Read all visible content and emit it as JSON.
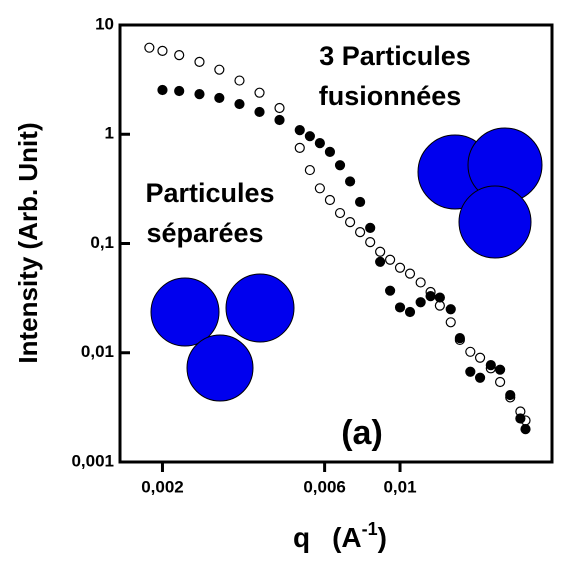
{
  "chart_data": {
    "type": "scatter",
    "y_label": "Intensity (Arb. Unit)",
    "x_label": [
      "q",
      "(A",
      "-1",
      ")"
    ],
    "annotations": [
      "3 Particules",
      "fusionnées",
      "Particules",
      "séparées",
      "(a)"
    ],
    "log_x": true,
    "log_y": true,
    "xlim": [
      0.0015,
      0.028
    ],
    "ylim": [
      0.001,
      10
    ],
    "xticks": [
      {
        "value": 0.002,
        "label": "0,002"
      },
      {
        "value": 0.006,
        "label": "0,006"
      },
      {
        "value": 0.01,
        "label": "0,01"
      }
    ],
    "yticks": [
      {
        "value": 0.001,
        "label": "0,001"
      },
      {
        "value": 0.01,
        "label": "0,01"
      },
      {
        "value": 0.1,
        "label": "0,1"
      },
      1,
      10
    ],
    "x": [
      0.00183,
      0.002,
      0.00224,
      0.00257,
      0.00294,
      0.00337,
      0.00386,
      0.00442,
      0.00507,
      0.00543,
      0.00581,
      0.00622,
      0.00666,
      0.00713,
      0.00763,
      0.00817,
      0.00874,
      0.00935,
      0.01,
      0.0107,
      0.0115,
      0.0123,
      0.0131,
      0.0141,
      0.015,
      0.0161,
      0.0172,
      0.0185,
      0.0197,
      0.0211,
      0.0226,
      0.0234
    ],
    "series": [
      {
        "color": "#000000",
        "marker": "open",
        "values": [
          6.2,
          5.8,
          5.3,
          4.6,
          3.9,
          3.1,
          2.4,
          1.74,
          0.75,
          0.47,
          0.32,
          0.25,
          0.19,
          0.157,
          0.127,
          0.103,
          0.084,
          0.071,
          0.06,
          0.053,
          0.044,
          0.036,
          0.027,
          0.019,
          0.0131,
          0.0102,
          0.009,
          0.0072,
          0.0054,
          0.0039,
          0.0029,
          0.0024
        ]
      },
      {
        "color": "#000000",
        "marker": "filled",
        "values": [
          null,
          2.54,
          2.49,
          2.33,
          2.15,
          1.89,
          1.6,
          1.35,
          1.09,
          0.96,
          0.83,
          0.69,
          0.52,
          0.37,
          0.24,
          0.139,
          0.068,
          0.037,
          0.026,
          0.0236,
          0.029,
          0.033,
          0.032,
          0.025,
          0.0136,
          0.0067,
          0.0059,
          0.0077,
          0.007,
          0.0041,
          0.0025,
          0.002
        ]
      }
    ]
  }
}
